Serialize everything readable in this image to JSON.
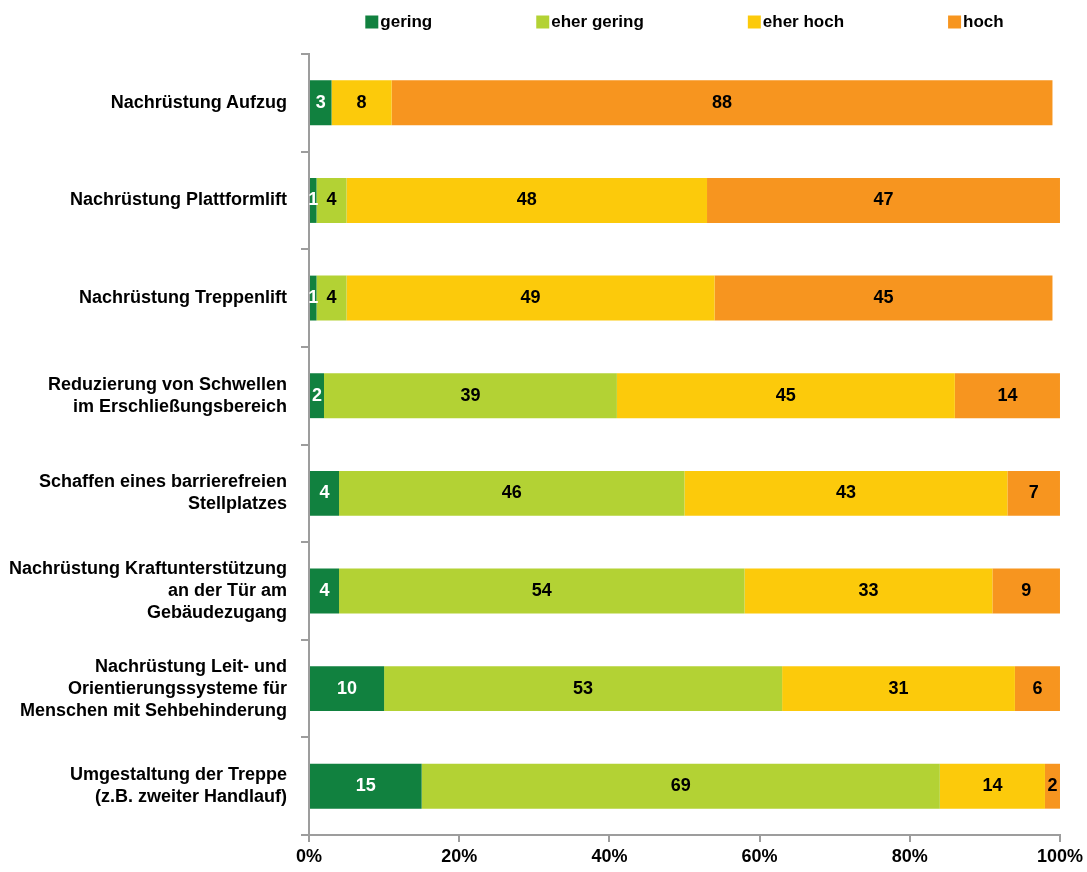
{
  "chart_data": {
    "type": "bar",
    "orientation": "horizontal",
    "stacked": true,
    "categories": [
      "Nachrüstung Aufzug",
      "Nachrüstung Plattformlift",
      "Nachrüstung Treppenlift",
      "Reduzierung von Schwellen\nim Erschließungsbereich",
      "Schaffen eines barrierefreien\nStellplatzes",
      "Nachrüstung Kraftunterstützung\nan der Tür am\nGebäudezugang",
      "Nachrüstung Leit- und\nOrientierungssysteme für\nMenschen mit Sehbehinderung",
      "Umgestaltung der Treppe\n(z.B. zweiter Handlauf)"
    ],
    "series": [
      {
        "name": "gering",
        "color": "#11813f",
        "values": [
          3,
          1,
          1,
          2,
          4,
          4,
          10,
          15
        ]
      },
      {
        "name": "eher gering",
        "color": "#b3d234",
        "values": [
          null,
          4,
          4,
          39,
          46,
          54,
          53,
          69
        ]
      },
      {
        "name": "eher hoch",
        "color": "#fcca0b",
        "values": [
          8,
          48,
          49,
          45,
          43,
          33,
          31,
          14
        ]
      },
      {
        "name": "hoch",
        "color": "#f7951f",
        "values": [
          88,
          47,
          45,
          14,
          7,
          9,
          6,
          2
        ]
      }
    ],
    "xlim": [
      0,
      100
    ],
    "xticks": [
      {
        "value": 0,
        "label": "0%"
      },
      {
        "value": 20,
        "label": "20%"
      },
      {
        "value": 40,
        "label": "40%"
      },
      {
        "value": 60,
        "label": "60%"
      },
      {
        "value": 80,
        "label": "80%"
      },
      {
        "value": 100,
        "label": "100%"
      }
    ],
    "legend": "top",
    "data_labels": true
  }
}
